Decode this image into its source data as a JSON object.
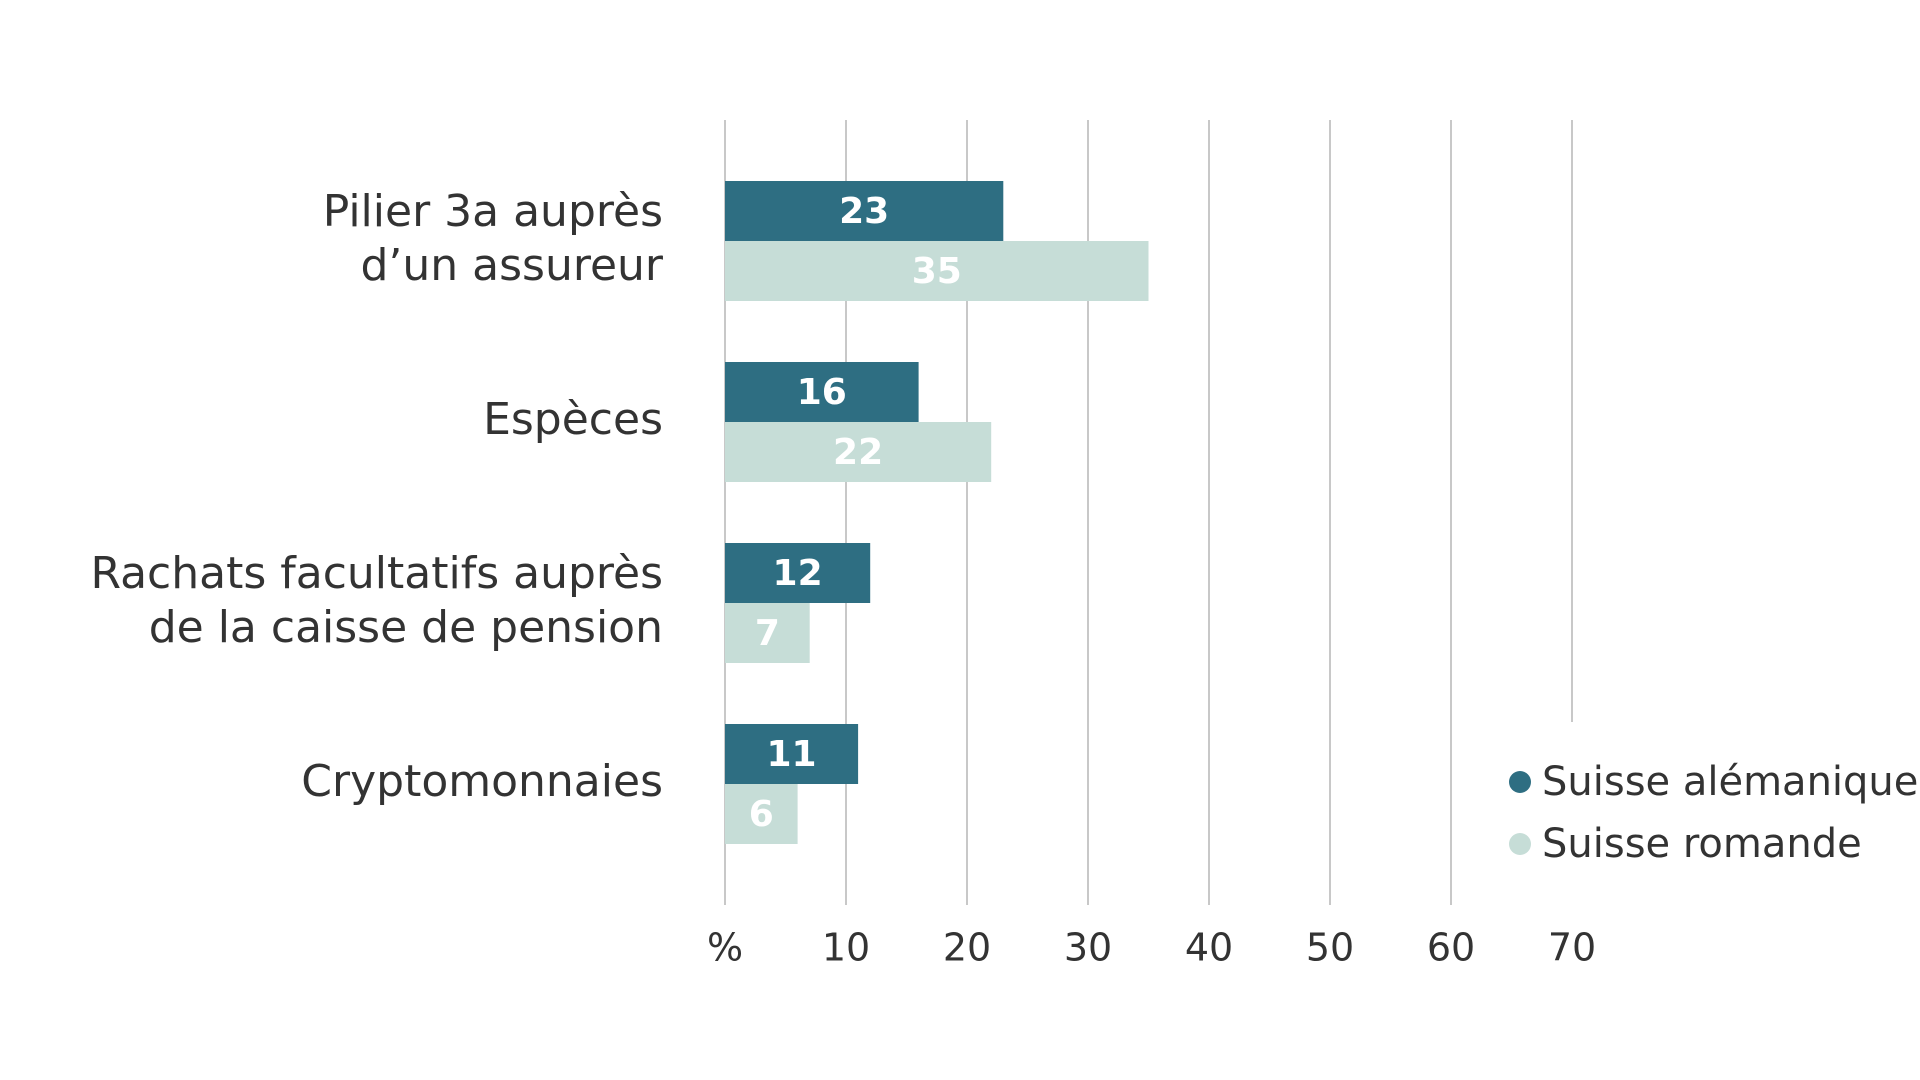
{
  "chart_data": {
    "type": "bar",
    "orientation": "horizontal",
    "categories": [
      [
        "Pilier 3a auprès",
        "d’un assureur"
      ],
      [
        "Espèces"
      ],
      [
        "Rachats facultatifs auprès",
        "de la caisse de pension"
      ],
      [
        "Cryptomonnaies"
      ]
    ],
    "series": [
      {
        "name": "Suisse alémanique",
        "values": [
          23,
          16,
          12,
          11
        ],
        "color": "#2e6e82"
      },
      {
        "name": "Suisse romande",
        "values": [
          35,
          22,
          7,
          6
        ],
        "color": "#c6ddd7"
      }
    ],
    "x_ticks": [
      "%",
      "10",
      "20",
      "30",
      "40",
      "50",
      "60",
      "70"
    ],
    "xlim": [
      0,
      70
    ],
    "grid": true,
    "legend_position": "bottom-right",
    "data_labels": true
  }
}
